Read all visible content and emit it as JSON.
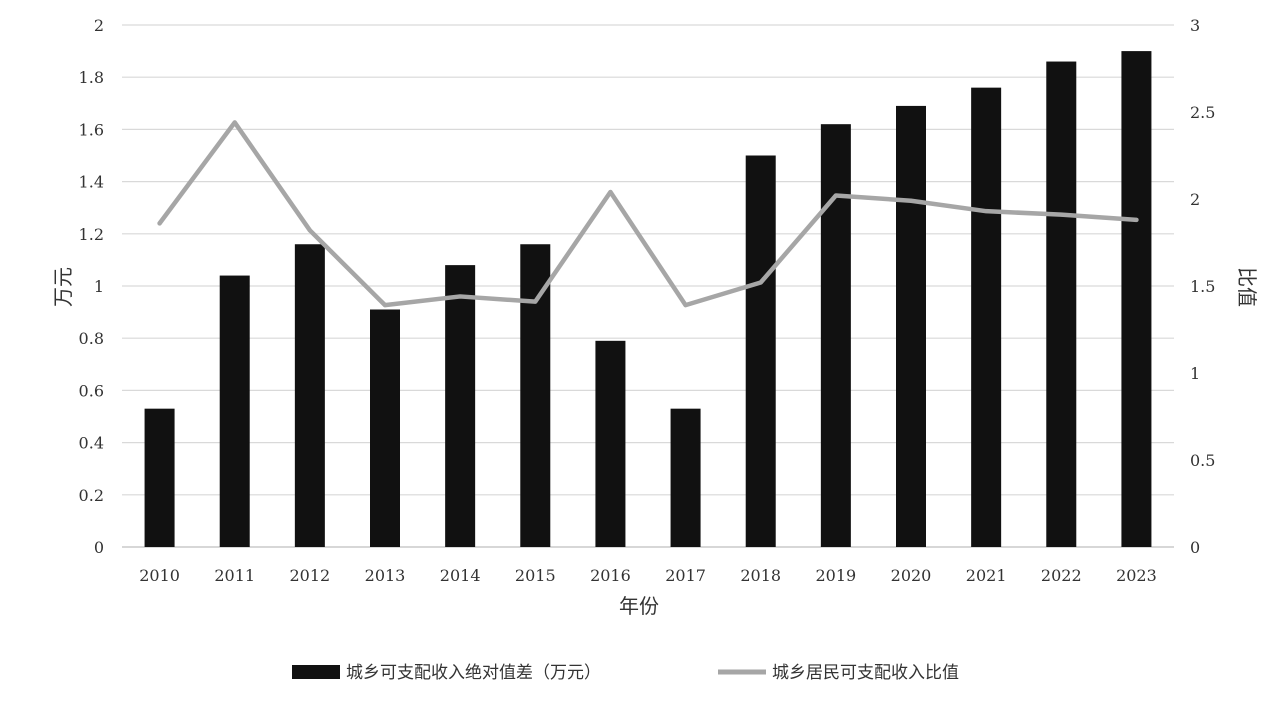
{
  "chart_data": {
    "type": "bar",
    "categories": [
      "2010",
      "2011",
      "2012",
      "2013",
      "2014",
      "2015",
      "2016",
      "2017",
      "2018",
      "2019",
      "2020",
      "2021",
      "2022",
      "2023"
    ],
    "series": [
      {
        "name": "城乡可支配收入绝对值差（万元）",
        "type": "bar",
        "axis": "left",
        "color": "#111111",
        "values": [
          0.53,
          1.04,
          1.16,
          0.91,
          1.08,
          1.16,
          0.79,
          0.53,
          1.5,
          1.62,
          1.69,
          1.76,
          1.86,
          1.9
        ]
      },
      {
        "name": "城乡居民可支配收入比值",
        "type": "line",
        "axis": "right",
        "color": "#a6a6a6",
        "values": [
          1.86,
          2.44,
          1.82,
          1.39,
          1.44,
          1.41,
          2.04,
          1.39,
          1.52,
          2.02,
          1.99,
          1.93,
          1.91,
          1.88
        ]
      }
    ],
    "xlabel": "年份",
    "ylabel": "万元",
    "y2label": "比值",
    "ylim": [
      0,
      2
    ],
    "yticks": [
      "0",
      "0.2",
      "0.4",
      "0.6",
      "0.8",
      "1",
      "1.2",
      "1.4",
      "1.6",
      "1.8",
      "2"
    ],
    "y2lim": [
      0,
      3
    ],
    "y2ticks": [
      "0",
      "0.5",
      "1",
      "1.5",
      "2",
      "2.5",
      "3"
    ],
    "grid": true,
    "legend_position": "bottom"
  }
}
